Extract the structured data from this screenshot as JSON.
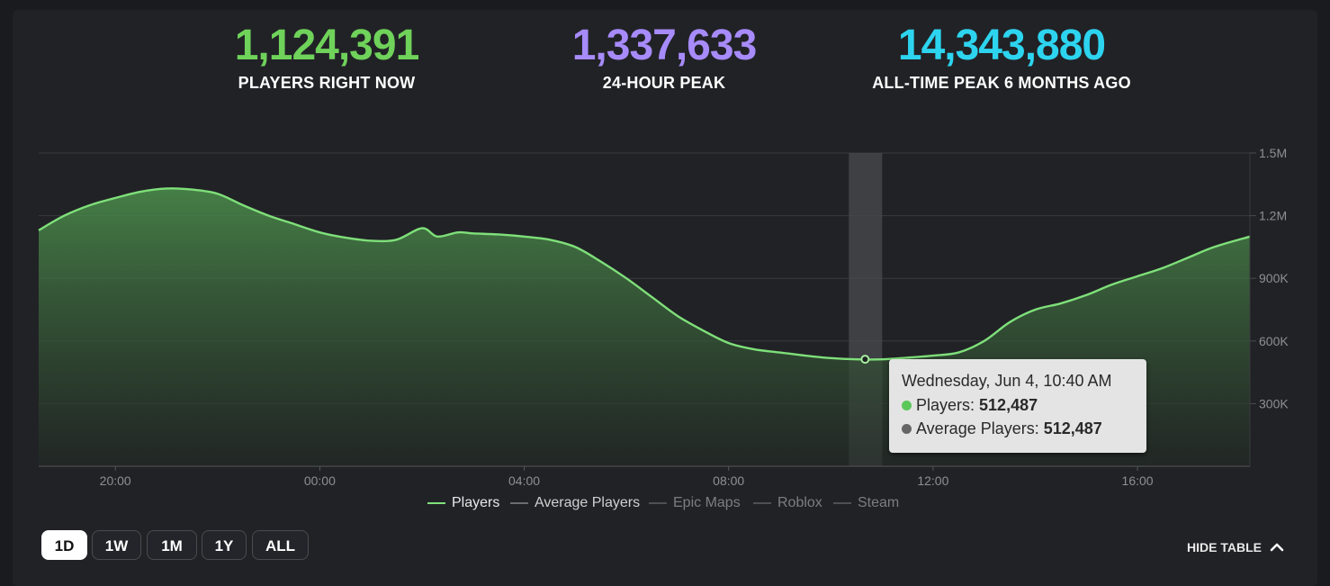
{
  "stats": [
    {
      "value": "1,124,391",
      "label": "PLAYERS RIGHT NOW",
      "color": "#6fd25a"
    },
    {
      "value": "1,337,633",
      "label": "24-HOUR PEAK",
      "color": "#a78bfa"
    },
    {
      "value": "14,343,880",
      "label": "ALL-TIME PEAK 6 MONTHS AGO",
      "color": "#2dd4ef"
    }
  ],
  "chart_data": {
    "type": "area",
    "ylim": [
      0,
      1500000
    ],
    "yticks": [
      "1.5M",
      "1.2M",
      "900K",
      "600K",
      "300K"
    ],
    "ytick_values": [
      1500000,
      1200000,
      900000,
      600000,
      300000
    ],
    "xticks": [
      "20:00",
      "00:00",
      "04:00",
      "08:00",
      "12:00",
      "16:00"
    ],
    "xtick_hours": [
      20,
      24,
      28,
      32,
      36,
      40
    ],
    "x_range_hours": [
      18.5,
      42.2
    ],
    "grid": true,
    "series": [
      {
        "name": "Players",
        "color": "#7fe07a",
        "x_hours": [
          18.5,
          19.0,
          19.5,
          20.0,
          20.5,
          21.0,
          21.5,
          22.0,
          22.5,
          23.0,
          23.5,
          24.0,
          24.5,
          25.0,
          25.5,
          26.0,
          26.3,
          26.7,
          27.0,
          27.5,
          28.0,
          28.5,
          29.0,
          29.5,
          30.0,
          30.5,
          31.0,
          31.5,
          32.0,
          32.5,
          33.0,
          33.5,
          34.0,
          34.5,
          35.0,
          35.5,
          36.0,
          36.5,
          37.0,
          37.5,
          38.0,
          38.5,
          39.0,
          39.5,
          40.0,
          40.5,
          41.0,
          41.5,
          42.2
        ],
        "values": [
          1130000,
          1200000,
          1250000,
          1285000,
          1315000,
          1330000,
          1325000,
          1305000,
          1250000,
          1200000,
          1160000,
          1120000,
          1095000,
          1080000,
          1085000,
          1140000,
          1100000,
          1120000,
          1115000,
          1110000,
          1100000,
          1085000,
          1050000,
          980000,
          900000,
          810000,
          720000,
          650000,
          590000,
          560000,
          545000,
          530000,
          518000,
          512000,
          512000,
          520000,
          530000,
          545000,
          600000,
          690000,
          750000,
          780000,
          820000,
          870000,
          910000,
          950000,
          1000000,
          1050000,
          1100000
        ]
      },
      {
        "name": "Average Players",
        "color": "#6b6c70"
      },
      {
        "name": "Epic Maps",
        "color": "#5a5b5f"
      },
      {
        "name": "Roblox",
        "color": "#5a5b5f"
      },
      {
        "name": "Steam",
        "color": "#5a5b5f"
      }
    ],
    "hover_hour": 34.67,
    "hover_value": 512487
  },
  "tooltip": {
    "title": "Wednesday, Jun 4, 10:40 AM",
    "players_label": "Players: ",
    "players_value": "512,487",
    "avg_label": "Average Players: ",
    "avg_value": "512,487",
    "players_dot": "#5cc85a",
    "avg_dot": "#666666"
  },
  "legend": [
    "Players",
    "Average Players",
    "Epic Maps",
    "Roblox",
    "Steam"
  ],
  "ranges": [
    "1D",
    "1W",
    "1M",
    "1Y",
    "ALL"
  ],
  "active_range": "1D",
  "hide_table_label": "HIDE TABLE"
}
